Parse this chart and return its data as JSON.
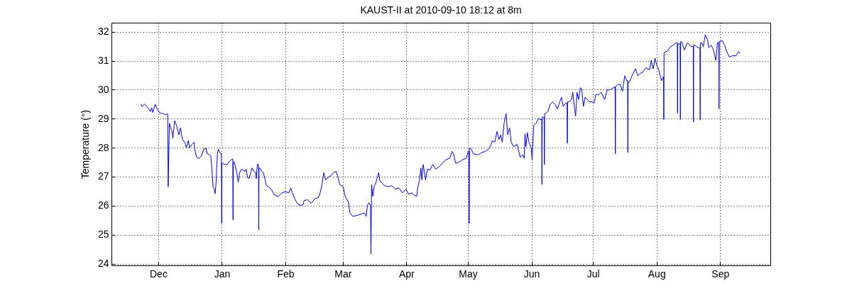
{
  "chart_data": {
    "type": "line",
    "title": "KAUST-II at 2010-09-10 18:12 at 8m",
    "ylabel": "Temperature (°)",
    "x": [
      "2009-11-22T13:00",
      "2009-11-23T03:00",
      "2009-11-24T07:00",
      "2009-11-25T11:00",
      "2009-11-27T05:00",
      "2009-11-27T18:00",
      "2009-11-28T08:00",
      "2009-11-29T12:00",
      "2009-11-30T16:00",
      "2009-12-01T19:00",
      "2009-12-02T23:00",
      "2009-12-04T16:00",
      "2009-12-05T14:00",
      "2009-12-05T20:00",
      "2009-12-06T10:00",
      "2009-12-07T00:00",
      "2009-12-07T14:00",
      "2009-12-08T03:00",
      "2009-12-08T23:00",
      "2009-12-09T21:00",
      "2009-12-11T01:00",
      "2009-12-11T20:00",
      "2009-12-12T18:00",
      "2009-12-13T22:00",
      "2009-12-14T17:00",
      "2009-12-15T15:00",
      "2009-12-16T06:00",
      "2009-12-17T09:00",
      "2009-12-18T12:00",
      "2009-12-18T18:00",
      "2009-12-19T17:00",
      "2009-12-20T20:00",
      "2009-12-22T00:00",
      "2009-12-23T04:00",
      "2009-12-24T07:00",
      "2009-12-24T21:00",
      "2009-12-26T01:00",
      "2009-12-26T15:00",
      "2009-12-27T04:00",
      "2009-12-27T18:00",
      "2009-12-28T08:00",
      "2009-12-28T17:00",
      "2009-12-29T03:00",
      "2009-12-29T20:00",
      "2009-12-30T07:00",
      "2009-12-31T00:00",
      "2009-12-31T11:00",
      "2009-12-31T19:00",
      "2009-12-31T22:00",
      "2010-01-01T01:00",
      "2010-01-01T09:00",
      "2010-01-02T13:00",
      "2010-01-03T16:00",
      "2010-01-04T20:00",
      "2010-01-06T00:00",
      "2010-01-06T08:00",
      "2010-01-06T11:00",
      "2010-01-06T14:00",
      "2010-01-07T03:00",
      "2010-01-08T07:00",
      "2010-01-09T00:00",
      "2010-01-09T16:00",
      "2010-01-10T14:00",
      "2010-01-12T08:00",
      "2010-01-12T22:00",
      "2010-01-13T12:00",
      "2010-01-14T07:00",
      "2010-01-15T05:00",
      "2010-01-15T19:00",
      "2010-01-16T14:00",
      "2010-01-17T13:00",
      "2010-01-17T18:00",
      "2010-01-18T08:00",
      "2010-01-18T21:00",
      "2010-01-19T00:00",
      "2010-01-19T03:00",
      "2010-01-19T12:00",
      "2010-01-20T10:00",
      "2010-01-21T06:00",
      "2010-01-22T03:00",
      "2010-01-22T17:00",
      "2010-01-23T21:00",
      "2010-01-25T09:00",
      "2010-01-26T18:00",
      "2010-01-28T12:00",
      "2010-01-30T06:00",
      "2010-01-31T23:00",
      "2010-02-02T17:00",
      "2010-02-03T14:00",
      "2010-02-04T10:00",
      "2010-02-05T13:00",
      "2010-02-06T17:00",
      "2010-02-08T06:00",
      "2010-02-09T15:00",
      "2010-02-10T04:00",
      "2010-02-11T22:00",
      "2010-02-13T15:00",
      "2010-02-15T09:00",
      "2010-02-17T02:00",
      "2010-02-17T22:00",
      "2010-02-18T20:00",
      "2010-02-19T18:00",
      "2010-02-20T13:00",
      "2010-02-21T18:00",
      "2010-02-23T11:00",
      "2010-02-24T14:00",
      "2010-02-25T18:00",
      "2010-02-26T16:00",
      "2010-02-27T11:00",
      "2010-03-01T05:00",
      "2010-03-02T03:00",
      "2010-03-03T18:00",
      "2010-03-04T11:00",
      "2010-03-05T20:00",
      "2010-03-08T03:00",
      "2010-03-09T21:00",
      "2010-03-11T14:00",
      "2010-03-12T10:00",
      "2010-03-12T23:00",
      "2010-03-13T16:00",
      "2010-03-14T12:00",
      "2010-03-14T17:00",
      "2010-03-15T01:00",
      "2010-03-15T15:00",
      "2010-03-16T06:00",
      "2010-03-17T09:00",
      "2010-03-18T12:00",
      "2010-03-19T02:00",
      "2010-03-20T06:00",
      "2010-03-21T10:00",
      "2010-03-23T04:00",
      "2010-03-24T21:00",
      "2010-03-26T15:00",
      "2010-03-28T08:00",
      "2010-03-30T02:00",
      "2010-03-31T19:00",
      "2010-04-01T23:00",
      "2010-04-03T16:00",
      "2010-04-04T20:00",
      "2010-04-06T00:00",
      "2010-04-06T13:00",
      "2010-04-07T09:00",
      "2010-04-08T02:00",
      "2010-04-08T12:00",
      "2010-04-09T05:00",
      "2010-04-10T09:00",
      "2010-04-11T05:00",
      "2010-04-12T08:00",
      "2010-04-13T20:00",
      "2010-04-15T05:00",
      "2010-04-16T22:00",
      "2010-04-18T16:00",
      "2010-04-20T09:00",
      "2010-04-22T03:00",
      "2010-04-23T07:00",
      "2010-04-23T20:00",
      "2010-04-25T01:00",
      "2010-04-26T18:00",
      "2010-04-28T12:00",
      "2010-04-30T05:00",
      "2010-05-01T03:00",
      "2010-05-01T12:00",
      "2010-05-01T15:00",
      "2010-05-01T18:00",
      "2010-05-02T07:00",
      "2010-05-03T17:00",
      "2010-05-05T23:00",
      "2010-05-07T17:00",
      "2010-05-09T10:00",
      "2010-05-11T04:00",
      "2010-05-12T08:00",
      "2010-05-12T21:00",
      "2010-05-14T02:00",
      "2010-05-15T05:00",
      "2010-05-16T04:00",
      "2010-05-16T23:00",
      "2010-05-17T18:00",
      "2010-05-18T16:00",
      "2010-05-19T15:00",
      "2010-05-20T10:00",
      "2010-05-21T08:00",
      "2010-05-22T03:00",
      "2010-05-23T07:00",
      "2010-05-25T00:00",
      "2010-05-26T13:00",
      "2010-05-27T16:00",
      "2010-05-28T11:00",
      "2010-05-28T20:00",
      "2010-05-29T07:00",
      "2010-05-30T00:00",
      "2010-05-30T19:00",
      "2010-05-31T22:00",
      "2010-06-01T07:00",
      "2010-06-02T03:00",
      "2010-06-03T06:00",
      "2010-06-04T09:00",
      "2010-06-05T00:00",
      "2010-06-06T00:00",
      "2010-06-06T03:00",
      "2010-06-06T06:00",
      "2010-06-06T17:00",
      "2010-06-07T04:00",
      "2010-06-07T07:00",
      "2010-06-07T10:00",
      "2010-06-07T20:00",
      "2010-06-09T01:00",
      "2010-06-10T04:00",
      "2010-06-11T07:00",
      "2010-06-12T12:00",
      "2010-06-13T15:00",
      "2010-06-14T19:00",
      "2010-06-15T15:00",
      "2010-06-16T12:00",
      "2010-06-17T17:00",
      "2010-06-18T09:00",
      "2010-06-18T12:00",
      "2010-06-18T15:00",
      "2010-06-19T10:00",
      "2010-06-20T13:00",
      "2010-06-21T04:00",
      "2010-06-22T01:00",
      "2010-06-22T13:00",
      "2010-06-23T05:00",
      "2010-06-24T00:00",
      "2010-06-24T20:00",
      "2010-06-25T12:00",
      "2010-06-26T08:00",
      "2010-06-27T03:00",
      "2010-06-28T07:00",
      "2010-06-29T05:00",
      "2010-06-30T14:00",
      "2010-07-01T13:00",
      "2010-07-02T10:00",
      "2010-07-03T19:00",
      "2010-07-05T00:00",
      "2010-07-06T17:00",
      "2010-07-07T21:00",
      "2010-07-09T00:00",
      "2010-07-10T04:00",
      "2010-07-11T19:00",
      "2010-07-11T22:00",
      "2010-07-12T01:00",
      "2010-07-13T01:00",
      "2010-07-14T05:00",
      "2010-07-15T09:00",
      "2010-07-16T12:00",
      "2010-07-17T11:00",
      "2010-07-17T21:00",
      "2010-07-18T00:00",
      "2010-07-18T03:00",
      "2010-07-18T20:00",
      "2010-07-20T00:00",
      "2010-07-21T17:00",
      "2010-07-22T20:00",
      "2010-07-24T01:00",
      "2010-07-25T04:00",
      "2010-07-26T22:00",
      "2010-07-28T15:00",
      "2010-07-29T10:00",
      "2010-07-30T09:00",
      "2010-07-31T07:00",
      "2010-08-01T02:00",
      "2010-08-01T21:00",
      "2010-08-02T20:00",
      "2010-08-03T10:00",
      "2010-08-04T10:00",
      "2010-08-04T13:00",
      "2010-08-04T16:00",
      "2010-08-04T22:00",
      "2010-08-06T07:00",
      "2010-08-07T10:00",
      "2010-08-09T04:00",
      "2010-08-10T16:00",
      "2010-08-11T03:00",
      "2010-08-11T06:00",
      "2010-08-11T09:00",
      "2010-08-12T02:00",
      "2010-08-12T12:00",
      "2010-08-12T15:00",
      "2010-08-12T18:00",
      "2010-08-13T05:00",
      "2010-08-14T14:00",
      "2010-08-16T02:00",
      "2010-08-17T19:00",
      "2010-08-18T21:00",
      "2010-08-19T00:00",
      "2010-08-19T03:00",
      "2010-08-19T13:00",
      "2010-08-21T06:00",
      "2010-08-22T04:00",
      "2010-08-22T07:00",
      "2010-08-22T10:00",
      "2010-08-23T00:00",
      "2010-08-23T20:00",
      "2010-08-24T18:00",
      "2010-08-25T22:00",
      "2010-08-26T11:00",
      "2010-08-27T15:00",
      "2010-08-28T19:00",
      "2010-08-29T22:00",
      "2010-08-30T18:00",
      "2010-08-31T08:00",
      "2010-08-31T11:00",
      "2010-08-31T14:00",
      "2010-09-01T06:00",
      "2010-09-02T01:00",
      "2010-09-03T05:00",
      "2010-09-04T03:00",
      "2010-09-05T12:00",
      "2010-09-07T01:00",
      "2010-09-08T18:00",
      "2010-09-09T22:00",
      "2010-09-10T18:00"
    ],
    "series": [
      {
        "color": "#0000ff",
        "values": [
          29.5,
          29.42,
          29.5,
          29.42,
          29.25,
          29.38,
          29.21,
          29.5,
          29.3,
          29.19,
          29.19,
          29.13,
          29.17,
          26.65,
          28.85,
          28.68,
          28.6,
          28.32,
          28.93,
          28.77,
          28.44,
          28.68,
          28.28,
          28.19,
          27.99,
          28.24,
          27.99,
          28.11,
          28.19,
          27.95,
          27.67,
          27.63,
          27.71,
          27.95,
          27.99,
          27.79,
          27.75,
          27.71,
          27.22,
          26.65,
          26.57,
          26.41,
          26.73,
          27.79,
          27.95,
          27.83,
          27.79,
          27.79,
          25.39,
          27.46,
          27.46,
          27.42,
          27.42,
          27.54,
          27.61,
          27.61,
          25.51,
          27.5,
          27.5,
          27.14,
          26.81,
          27.14,
          27.26,
          27.18,
          27.26,
          26.97,
          26.93,
          27.18,
          27.3,
          27.18,
          27.14,
          26.93,
          27.42,
          27.42,
          25.16,
          27.3,
          27.3,
          27.18,
          27.14,
          26.89,
          26.69,
          26.65,
          26.53,
          26.36,
          26.32,
          26.44,
          26.48,
          26.44,
          26.61,
          26.44,
          26.24,
          26.08,
          26.0,
          26.04,
          26.18,
          26.2,
          26.08,
          26.24,
          26.28,
          26.44,
          26.73,
          27.14,
          26.89,
          26.97,
          27.05,
          27.14,
          27.18,
          26.97,
          26.73,
          26.65,
          26.32,
          26.12,
          25.75,
          25.63,
          25.67,
          25.71,
          25.75,
          25.63,
          26.0,
          26.1,
          26.0,
          24.33,
          26.73,
          26.32,
          26.65,
          26.85,
          27.14,
          26.85,
          26.77,
          26.69,
          26.65,
          26.69,
          26.57,
          26.61,
          26.44,
          26.57,
          26.4,
          26.44,
          26.36,
          26.32,
          26.61,
          26.89,
          27.3,
          26.89,
          27.42,
          26.89,
          27.26,
          27.22,
          27.42,
          27.26,
          27.34,
          27.46,
          27.59,
          27.63,
          27.87,
          27.83,
          27.46,
          27.5,
          27.59,
          27.63,
          27.87,
          27.87,
          25.39,
          27.99,
          27.99,
          27.79,
          27.75,
          27.83,
          27.87,
          27.95,
          28.11,
          28.24,
          28.19,
          28.56,
          28.28,
          28.44,
          28.19,
          28.85,
          29.17,
          28.44,
          28.68,
          28.19,
          28.03,
          28.11,
          27.67,
          27.75,
          27.63,
          28.48,
          28.03,
          28.52,
          28.19,
          27.99,
          27.59,
          28.77,
          28.85,
          29.01,
          28.97,
          28.97,
          26.73,
          29.05,
          29.05,
          29.05,
          27.42,
          29.17,
          29.17,
          29.25,
          29.5,
          29.58,
          29.5,
          29.34,
          29.58,
          29.74,
          29.42,
          29.54,
          29.54,
          28.15,
          29.58,
          29.58,
          29.66,
          29.91,
          29.34,
          29.09,
          29.91,
          29.66,
          30.07,
          30.03,
          29.42,
          29.74,
          29.66,
          29.58,
          29.58,
          29.54,
          29.83,
          29.83,
          29.91,
          29.66,
          29.99,
          29.99,
          30.03,
          30.1,
          27.79,
          30.1,
          30.17,
          30.19,
          29.95,
          30.48,
          30.31,
          30.31,
          27.83,
          30.27,
          30.27,
          30.48,
          30.72,
          30.48,
          30.56,
          30.6,
          30.76,
          30.68,
          31.01,
          30.72,
          31.09,
          30.84,
          30.72,
          30.48,
          30.31,
          30.45,
          28.97,
          31.25,
          31.29,
          31.33,
          31.45,
          31.54,
          31.62,
          31.62,
          29.19,
          31.58,
          31.58,
          31.58,
          28.97,
          31.66,
          31.66,
          31.37,
          31.62,
          31.49,
          31.49,
          28.89,
          31.54,
          31.54,
          31.45,
          31.45,
          28.95,
          31.62,
          31.62,
          31.49,
          31.9,
          31.7,
          31.45,
          31.54,
          31.37,
          31.01,
          31.62,
          31.62,
          29.34,
          31.66,
          31.66,
          31.7,
          31.54,
          31.33,
          31.13,
          31.17,
          31.17,
          31.31,
          31.25
        ]
      }
    ],
    "xlim": [
      "2009-11-08T04:00",
      "2010-09-25T12:00"
    ],
    "xticks": [
      {
        "value": "2009-12-01",
        "label": "Dec"
      },
      {
        "value": "2010-01-01",
        "label": "Jan"
      },
      {
        "value": "2010-02-01",
        "label": "Feb"
      },
      {
        "value": "2010-03-01",
        "label": "Mar"
      },
      {
        "value": "2010-04-01",
        "label": "Apr"
      },
      {
        "value": "2010-05-01",
        "label": "May"
      },
      {
        "value": "2010-06-01",
        "label": "Jun"
      },
      {
        "value": "2010-07-01",
        "label": "Jul"
      },
      {
        "value": "2010-08-01",
        "label": "Aug"
      },
      {
        "value": "2010-09-01",
        "label": "Sep"
      }
    ],
    "ylim": [
      23.94,
      32.31
    ],
    "yticks": [
      24,
      25,
      26,
      27,
      28,
      29,
      30,
      31,
      32
    ],
    "grid": true
  }
}
